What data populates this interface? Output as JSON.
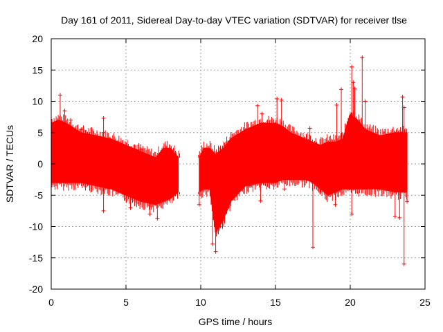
{
  "chart_data": {
    "type": "scatter",
    "title": "Day 161 of 2011, Sidereal Day-to-day VTEC variation (SDTVAR) for receiver tlse",
    "xlabel": "GPS time / hours",
    "ylabel": "SDTVAR / TECUs",
    "xlim": [
      0,
      25
    ],
    "ylim": [
      -20,
      20
    ],
    "xticks": [
      "0",
      "5",
      "10",
      "15",
      "20",
      "25"
    ],
    "yticks": [
      "-20",
      "-15",
      "-10",
      "-5",
      "0",
      "5",
      "10",
      "15",
      "20"
    ],
    "grid": true,
    "series_color": "#ff0000",
    "marker": "plus",
    "band": {
      "x": [
        0.0,
        0.5,
        1.0,
        2.0,
        3.0,
        4.0,
        5.0,
        6.0,
        7.0,
        7.5,
        8.0,
        8.5,
        9.9,
        10.2,
        10.6,
        11.0,
        11.5,
        12.0,
        13.0,
        14.0,
        15.0,
        15.5,
        16.0,
        17.0,
        17.5,
        18.0,
        18.5,
        19.0,
        19.5,
        20.0,
        20.5,
        21.0,
        22.0,
        23.0,
        23.8
      ],
      "upper": [
        6.5,
        7.0,
        6.5,
        5.0,
        4.5,
        4.0,
        3.0,
        2.0,
        1.0,
        2.5,
        2.5,
        1.0,
        1.0,
        2.5,
        2.5,
        1.5,
        2.5,
        4.0,
        5.5,
        6.5,
        6.5,
        6.0,
        5.0,
        4.0,
        3.5,
        3.0,
        3.5,
        3.5,
        4.0,
        8.0,
        7.0,
        5.5,
        4.5,
        5.0,
        5.0
      ],
      "lower": [
        -3.0,
        -3.0,
        -3.0,
        -3.0,
        -3.5,
        -4.0,
        -5.0,
        -6.0,
        -6.5,
        -6.0,
        -5.5,
        -4.5,
        -4.5,
        -4.0,
        -4.0,
        -11.0,
        -9.0,
        -6.0,
        -3.5,
        -3.0,
        -3.0,
        -2.5,
        -2.5,
        -2.5,
        -3.0,
        -4.0,
        -5.0,
        -4.5,
        -4.0,
        -4.0,
        -4.0,
        -4.0,
        -4.0,
        -4.5,
        -4.5
      ]
    },
    "gaps": [
      [
        8.6,
        9.8
      ]
    ],
    "outliers": [
      {
        "x": 0.6,
        "y": 11.0
      },
      {
        "x": 0.9,
        "y": 8.5
      },
      {
        "x": 1.3,
        "y": 7.0
      },
      {
        "x": 2.0,
        "y": 5.5
      },
      {
        "x": 3.5,
        "y": 7.3
      },
      {
        "x": 3.5,
        "y": 5.0
      },
      {
        "x": 3.5,
        "y": -7.5
      },
      {
        "x": 5.3,
        "y": -7.0
      },
      {
        "x": 6.0,
        "y": 2.3
      },
      {
        "x": 6.6,
        "y": -8.0
      },
      {
        "x": 7.1,
        "y": -8.7
      },
      {
        "x": 7.7,
        "y": 2.5
      },
      {
        "x": 9.9,
        "y": -6.5
      },
      {
        "x": 10.8,
        "y": -12.8
      },
      {
        "x": 11.0,
        "y": -14.0
      },
      {
        "x": 11.2,
        "y": -10.0
      },
      {
        "x": 13.3,
        "y": -3.5
      },
      {
        "x": 13.8,
        "y": 9.3
      },
      {
        "x": 14.1,
        "y": 8.0
      },
      {
        "x": 14.0,
        "y": -5.9
      },
      {
        "x": 15.1,
        "y": 10.4
      },
      {
        "x": 15.4,
        "y": 10.2
      },
      {
        "x": 15.6,
        "y": -4.0
      },
      {
        "x": 17.3,
        "y": 5.7
      },
      {
        "x": 17.5,
        "y": -13.3
      },
      {
        "x": 18.0,
        "y": -4.5
      },
      {
        "x": 19.1,
        "y": 9.4
      },
      {
        "x": 19.4,
        "y": 11.9
      },
      {
        "x": 19.0,
        "y": -6.5
      },
      {
        "x": 20.1,
        "y": 15.5
      },
      {
        "x": 20.2,
        "y": 13.0
      },
      {
        "x": 20.3,
        "y": 12.0
      },
      {
        "x": 20.1,
        "y": -8.0
      },
      {
        "x": 20.8,
        "y": 17.0
      },
      {
        "x": 21.0,
        "y": 10.0
      },
      {
        "x": 23.0,
        "y": -8.4
      },
      {
        "x": 23.3,
        "y": -8.6
      },
      {
        "x": 23.5,
        "y": 10.7
      },
      {
        "x": 23.6,
        "y": 9.0
      },
      {
        "x": 23.6,
        "y": -16.0
      },
      {
        "x": 23.8,
        "y": -6.0
      }
    ]
  }
}
